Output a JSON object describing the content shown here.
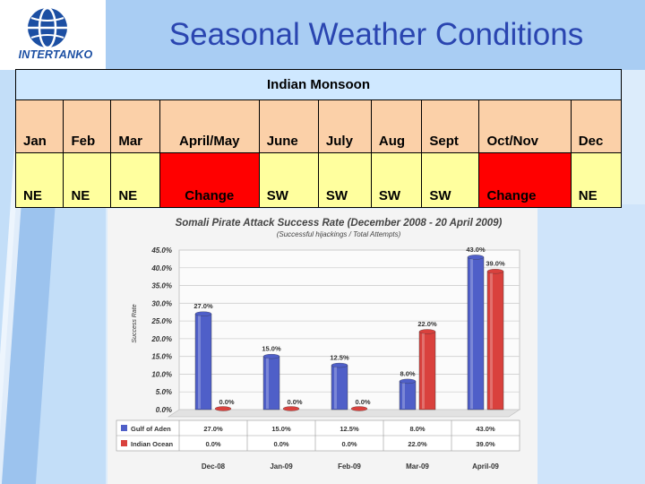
{
  "slide": {
    "title": "Seasonal Weather Conditions",
    "logo_text": "INTERTANKO"
  },
  "monsoon_table": {
    "header": "Indian Monsoon",
    "months": [
      "Jan",
      "Feb",
      "Mar",
      "April/May",
      "June",
      "July",
      "Aug",
      "Sept",
      "Oct/Nov",
      "Dec"
    ],
    "directions": [
      "NE",
      "NE",
      "NE",
      "Change",
      "SW",
      "SW",
      "SW",
      "SW",
      "Change",
      "NE"
    ],
    "change_color": "#ff0000",
    "direction_color": "#ffff9e",
    "month_color": "#fbd0a8"
  },
  "chart_data": {
    "type": "bar",
    "title": "Somali Pirate Attack Success Rate (December 2008 - 20 April 2009)",
    "subtitle": "(Successful hijackings / Total Attempts)",
    "ylabel": "Success Rate",
    "xlabel": "",
    "categories": [
      "Dec-08",
      "Jan-09",
      "Feb-09",
      "Mar-09",
      "April-09"
    ],
    "ylim": [
      0,
      45
    ],
    "yticks": [
      "0.0%",
      "5.0%",
      "10.0%",
      "15.0%",
      "20.0%",
      "25.0%",
      "30.0%",
      "35.0%",
      "40.0%",
      "45.0%"
    ],
    "grid": true,
    "legend_position": "bottom-left (data table)",
    "series": [
      {
        "name": "Gulf of Aden",
        "color": "#4f5fc8",
        "values": [
          27.0,
          15.0,
          12.5,
          8.0,
          43.0
        ],
        "labels": [
          "27.0%",
          "15.0%",
          "12.5%",
          "8.0%",
          "43.0%"
        ]
      },
      {
        "name": "Indian Ocean",
        "color": "#d9413d",
        "values": [
          0.0,
          0.0,
          0.0,
          22.0,
          39.0
        ],
        "labels": [
          "0.0%",
          "0.0%",
          "0.0%",
          "22.0%",
          "39.0%"
        ]
      }
    ]
  }
}
